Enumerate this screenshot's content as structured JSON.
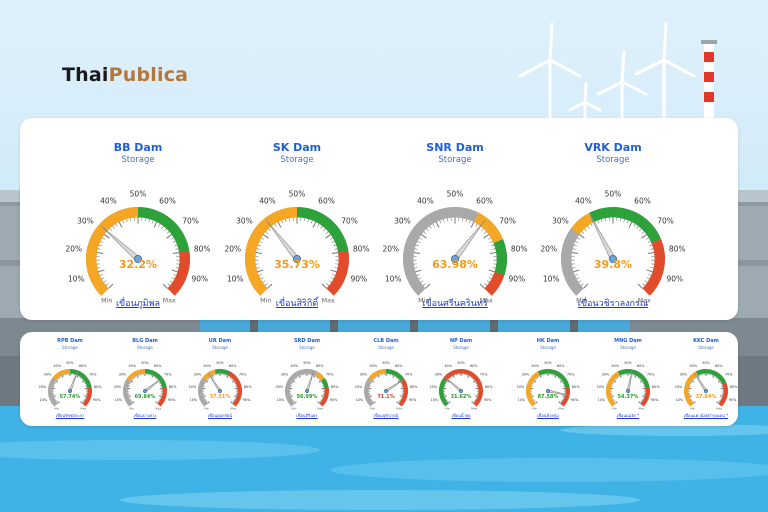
{
  "brand": {
    "part1": "Thai",
    "part2": "Publica"
  },
  "colors": {
    "gray": "#a9a9a9",
    "orange": "#f5a623",
    "green": "#2ea23a",
    "red": "#e24c2b",
    "pct_orange": "#f29b1b",
    "pct_green": "#2a9a2a",
    "pct_red": "#d8392b"
  },
  "big_scale": {
    "ticks": [
      "10%",
      "20%",
      "30%",
      "40%",
      "50%",
      "60%",
      "70%",
      "80%",
      "90%"
    ],
    "min": "Min",
    "max": "Max"
  },
  "big_gauges": [
    {
      "title": "BB Dam",
      "subtitle": "Storage",
      "value": 32.2,
      "value_text": "32.2%",
      "link": "เขื่อนภูมิพล",
      "zones": [
        [
          0,
          0.3,
          "gray"
        ],
        [
          0,
          0.5,
          "orange"
        ],
        [
          0.5,
          0.8,
          "green"
        ],
        [
          0.8,
          1,
          "red"
        ]
      ],
      "pct_color": "pct_orange"
    },
    {
      "title": "SK Dam",
      "subtitle": "Storage",
      "value": 35.73,
      "value_text": "35.73%",
      "link": "เขื่อนสิริกิติ์",
      "zones": [
        [
          0,
          0.3,
          "gray"
        ],
        [
          0,
          0.5,
          "orange"
        ],
        [
          0.5,
          0.8,
          "green"
        ],
        [
          0.8,
          1,
          "red"
        ]
      ],
      "pct_color": "pct_orange"
    },
    {
      "title": "SNR Dam",
      "subtitle": "Storage",
      "value": 63.98,
      "value_text": "63.98%",
      "link": "เขื่อนศรีนครินทร์",
      "zones": [
        [
          0,
          0.6,
          "gray"
        ],
        [
          0.6,
          0.75,
          "orange"
        ],
        [
          0.75,
          0.9,
          "green"
        ],
        [
          0.9,
          1,
          "red"
        ]
      ],
      "pct_color": "pct_orange"
    },
    {
      "title": "VRK Dam",
      "subtitle": "Storage",
      "value": 39.8,
      "value_text": "39.8%",
      "link": "เขื่อนวชิราลงกรณ",
      "zones": [
        [
          0,
          0.3,
          "gray"
        ],
        [
          0.3,
          0.4,
          "orange"
        ],
        [
          0.4,
          0.75,
          "green"
        ],
        [
          0.75,
          1,
          "red"
        ]
      ],
      "pct_color": "pct_orange"
    }
  ],
  "small_gauges": [
    {
      "title": "RPB Dam",
      "subtitle": "Storage",
      "value": 57.74,
      "value_text": "57.74%",
      "link": "เขื่อนรัชชประภา",
      "zones": [
        [
          0,
          0.3,
          "gray"
        ],
        [
          0.3,
          0.5,
          "orange"
        ],
        [
          0.5,
          0.8,
          "green"
        ],
        [
          0.8,
          1,
          "red"
        ]
      ],
      "pct_color": "pct_green"
    },
    {
      "title": "BLG Dam",
      "subtitle": "Storage",
      "value": 69.84,
      "value_text": "69.84%",
      "link": "เขื่อนบางลาง",
      "zones": [
        [
          0,
          0.3,
          "gray"
        ],
        [
          0.3,
          0.5,
          "orange"
        ],
        [
          0.5,
          0.8,
          "green"
        ],
        [
          0.8,
          1,
          "red"
        ]
      ],
      "pct_color": "pct_green"
    },
    {
      "title": "UR Dam",
      "subtitle": "Storage",
      "value": 37.51,
      "value_text": "37.51%",
      "link": "เขื่อนอุบลรัตน์",
      "zones": [
        [
          0,
          0.3,
          "gray"
        ],
        [
          0.3,
          0.45,
          "orange"
        ],
        [
          0.45,
          0.6,
          "green"
        ],
        [
          0.6,
          1,
          "red"
        ]
      ],
      "pct_color": "pct_orange"
    },
    {
      "title": "SRD Dam",
      "subtitle": "Storage",
      "value": 56.99,
      "value_text": "56.99%",
      "link": "เขื่อนสิรินธร",
      "zones": [
        [
          0,
          0.6,
          "gray"
        ],
        [
          0.6,
          0.7,
          "orange"
        ],
        [
          0.7,
          0.8,
          "green"
        ],
        [
          0.8,
          1,
          "red"
        ]
      ],
      "pct_color": "pct_green"
    },
    {
      "title": "CLB Dam",
      "subtitle": "Storage",
      "value": 71.1,
      "value_text": "71.1%",
      "link": "เขื่อนจุฬาภรณ์",
      "zones": [
        [
          0,
          0.3,
          "gray"
        ],
        [
          0.3,
          0.5,
          "orange"
        ],
        [
          0.5,
          0.7,
          "green"
        ],
        [
          0.7,
          1,
          "red"
        ]
      ],
      "pct_color": "pct_red"
    },
    {
      "title": "NP Dam",
      "subtitle": "Storage",
      "value": 31.62,
      "value_text": "31.62%",
      "link": "เขื่อนน้ำพุง",
      "zones": [
        [
          0,
          0.3,
          "green"
        ],
        [
          0.3,
          1,
          "red"
        ]
      ],
      "pct_color": "pct_green"
    },
    {
      "title": "HK Dam",
      "subtitle": "Storage",
      "value": 87.58,
      "value_text": "87.58%",
      "link": "เขื่อนห้วยกุ่ม",
      "zones": [
        [
          0,
          0.4,
          "orange"
        ],
        [
          0.4,
          0.8,
          "green"
        ],
        [
          0.8,
          1,
          "red"
        ]
      ],
      "pct_color": "pct_green"
    },
    {
      "title": "MNG Dam",
      "subtitle": "Storage",
      "value": 54.37,
      "value_text": "54.37%",
      "link": "เขื่อนแม่งัด *",
      "zones": [
        [
          0,
          0.4,
          "orange"
        ],
        [
          0.4,
          0.8,
          "green"
        ],
        [
          0.8,
          1,
          "red"
        ]
      ],
      "pct_color": "pct_green"
    },
    {
      "title": "KKC Dam",
      "subtitle": "Storage",
      "value": 37.84,
      "value_text": "37.84%",
      "link": "เขื่อนแควน้อยบำรุงแดน *",
      "zones": [
        [
          0,
          0.4,
          "orange"
        ],
        [
          0.4,
          0.75,
          "green"
        ],
        [
          0.75,
          1,
          "red"
        ]
      ],
      "pct_color": "pct_orange"
    }
  ]
}
